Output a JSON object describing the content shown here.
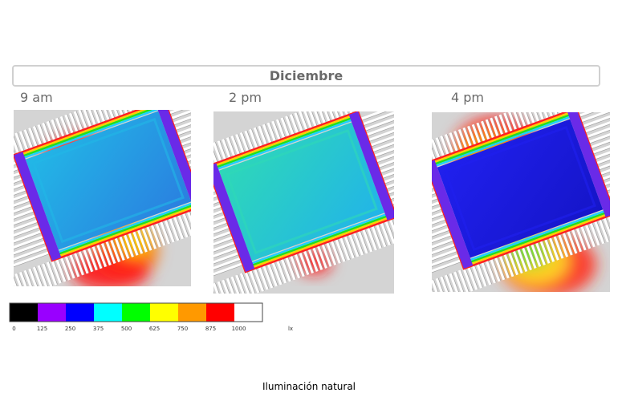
{
  "header": {
    "title": "Diciembre"
  },
  "panels": [
    {
      "label": "9 am"
    },
    {
      "label": "2 pm"
    },
    {
      "label": "4 pm"
    }
  ],
  "legend": {
    "stops": [
      {
        "value": 0,
        "color": "#000000"
      },
      {
        "value": 125,
        "color": "#9900ff"
      },
      {
        "value": 250,
        "color": "#0000ff"
      },
      {
        "value": 375,
        "color": "#00ffff"
      },
      {
        "value": 500,
        "color": "#00ff00"
      },
      {
        "value": 625,
        "color": "#ffff00"
      },
      {
        "value": 750,
        "color": "#ff9900"
      },
      {
        "value": 875,
        "color": "#ff0000"
      },
      {
        "value": 1000,
        "color": "#ffffff"
      }
    ],
    "unit": "lx"
  },
  "caption": "Iluminación natural"
}
